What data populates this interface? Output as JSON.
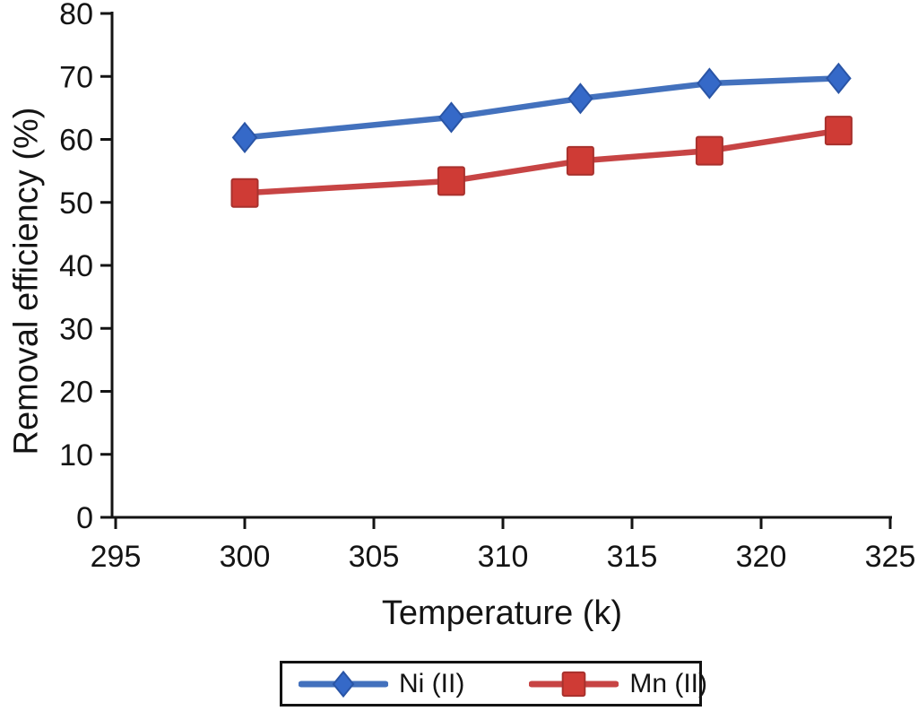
{
  "chart_data": {
    "type": "line",
    "title": "",
    "xlabel": "Temperature (k)",
    "ylabel": "Removal efficiency (%)",
    "xlim": [
      295,
      325
    ],
    "ylim": [
      0,
      80
    ],
    "x_ticks": [
      295,
      300,
      305,
      310,
      315,
      320,
      325
    ],
    "y_ticks": [
      0,
      10,
      20,
      30,
      40,
      50,
      60,
      70,
      80
    ],
    "grid": false,
    "legend_position": "bottom-center-boxed",
    "x": [
      300,
      308,
      313,
      318,
      323
    ],
    "series": [
      {
        "name": "Ni (II)",
        "values": [
          60.3,
          63.5,
          66.5,
          68.9,
          69.7
        ],
        "marker": "diamond",
        "line_color": "#4371bd",
        "marker_fill": "#3569c8",
        "marker_edge": "#2a55a6"
      },
      {
        "name": "Mn (II)",
        "values": [
          51.5,
          53.4,
          56.6,
          58.2,
          61.4
        ],
        "marker": "square",
        "line_color": "#c74444",
        "marker_fill": "#cf3b35",
        "marker_edge": "#a8312d"
      }
    ],
    "axis_color": "#131313"
  }
}
